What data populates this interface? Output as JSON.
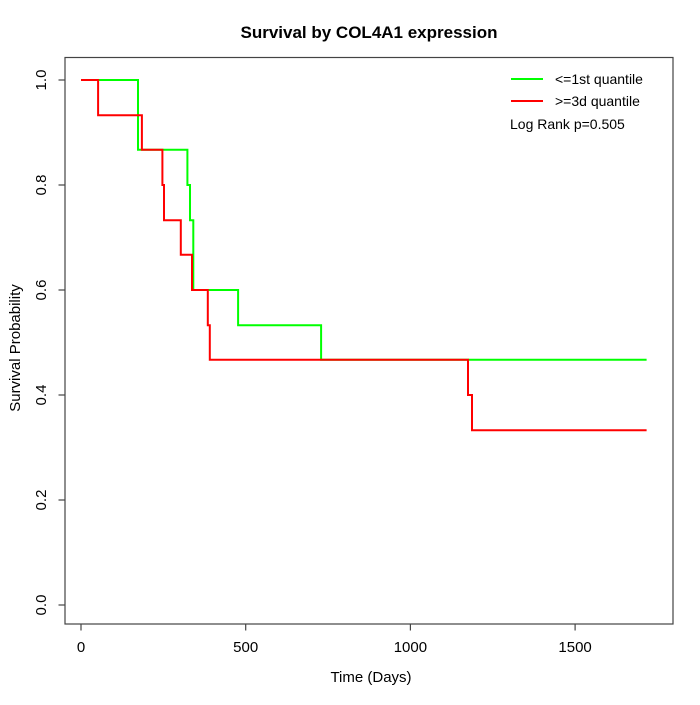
{
  "title": "Survival by COL4A1 expression",
  "axes": {
    "xlabel": "Time (Days)",
    "ylabel": "Survival Probability"
  },
  "legend": {
    "items": [
      {
        "label": "<=1st quantile",
        "color": "#00ff00"
      },
      {
        "label": ">=3d quantile",
        "color": "#ff0000"
      }
    ],
    "annotation": "Log Rank p=0.505"
  },
  "chart_data": {
    "type": "line",
    "subtype": "kaplan-meier-step",
    "title": "Survival by COL4A1 expression",
    "xlabel": "Time (Days)",
    "ylabel": "Survival Probability",
    "xlim": [
      0,
      1790
    ],
    "ylim": [
      0.0,
      1.0
    ],
    "x_ticks": [
      0,
      500,
      1000,
      1500
    ],
    "y_ticks": [
      0.0,
      0.2,
      0.4,
      0.6,
      0.8,
      1.0
    ],
    "grid": false,
    "legend_position": "top-right",
    "annotations": [
      {
        "text": "Log Rank p=0.505"
      }
    ],
    "series": [
      {
        "name": "<=1st quantile",
        "color": "#00ff00",
        "points": [
          [
            0,
            1.0
          ],
          [
            173,
            1.0
          ],
          [
            173,
            0.867
          ],
          [
            323,
            0.867
          ],
          [
            323,
            0.8
          ],
          [
            331,
            0.8
          ],
          [
            331,
            0.733
          ],
          [
            341,
            0.733
          ],
          [
            341,
            0.6
          ],
          [
            477,
            0.6
          ],
          [
            477,
            0.533
          ],
          [
            729,
            0.533
          ],
          [
            729,
            0.467
          ],
          [
            1717,
            0.467
          ]
        ]
      },
      {
        "name": ">=3d quantile",
        "color": "#ff0000",
        "points": [
          [
            0,
            1.0
          ],
          [
            52,
            1.0
          ],
          [
            52,
            0.933
          ],
          [
            185,
            0.933
          ],
          [
            185,
            0.867
          ],
          [
            247,
            0.867
          ],
          [
            247,
            0.8
          ],
          [
            252,
            0.8
          ],
          [
            252,
            0.733
          ],
          [
            303,
            0.733
          ],
          [
            303,
            0.667
          ],
          [
            337,
            0.667
          ],
          [
            337,
            0.6
          ],
          [
            385,
            0.6
          ],
          [
            385,
            0.533
          ],
          [
            391,
            0.533
          ],
          [
            391,
            0.467
          ],
          [
            1175,
            0.467
          ],
          [
            1175,
            0.4
          ],
          [
            1187,
            0.4
          ],
          [
            1187,
            0.333
          ],
          [
            1717,
            0.333
          ]
        ]
      }
    ]
  }
}
